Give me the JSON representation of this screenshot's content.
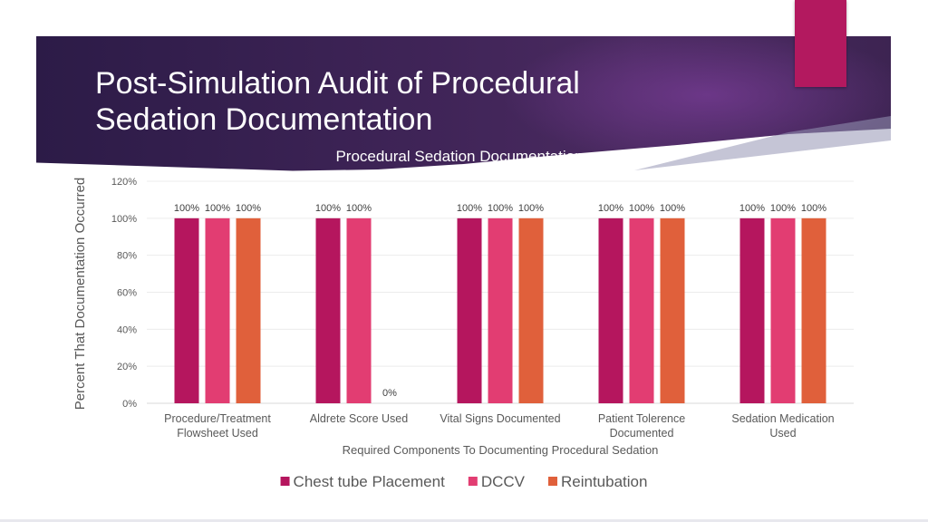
{
  "slide": {
    "title_line1": "Post-Simulation Audit of Procedural",
    "title_line2": "Sedation Documentation"
  },
  "colors": {
    "banner": "#3a2150",
    "accent": "#b3195f"
  },
  "chart_data": {
    "type": "bar",
    "title": "Procedural Sedation Documentation",
    "xlabel": "Required Components To Documenting Procedural Sedation",
    "ylabel": "Percent That Documentation Occurred",
    "categories": [
      "Procedure/Treatment Flowsheet Used",
      "Aldrete Score Used",
      "Vital Signs Documented",
      "Patient Tolerence Documented",
      "Sedation Medication Used"
    ],
    "series": [
      {
        "name": "Chest tube Placement",
        "color": "#b5165e",
        "values": [
          100,
          100,
          100,
          100,
          100
        ],
        "labels": [
          "100%",
          "100%",
          "100%",
          "100%",
          "100%"
        ]
      },
      {
        "name": "DCCV",
        "color": "#e23d72",
        "values": [
          100,
          100,
          100,
          100,
          100
        ],
        "labels": [
          "100%",
          "100%",
          "100%",
          "100%",
          "100%"
        ]
      },
      {
        "name": "Reintubation",
        "color": "#e0603b",
        "values": [
          100,
          0,
          100,
          100,
          100
        ],
        "labels": [
          "100%",
          "0%",
          "100%",
          "100%",
          "100%"
        ]
      }
    ],
    "yticks": [
      0,
      20,
      40,
      60,
      80,
      100,
      120
    ],
    "ytick_labels": [
      "0%",
      "20%",
      "40%",
      "60%",
      "80%",
      "100%",
      "120%"
    ],
    "ylim": [
      0,
      120
    ],
    "grid": true,
    "legend_position": "bottom"
  }
}
